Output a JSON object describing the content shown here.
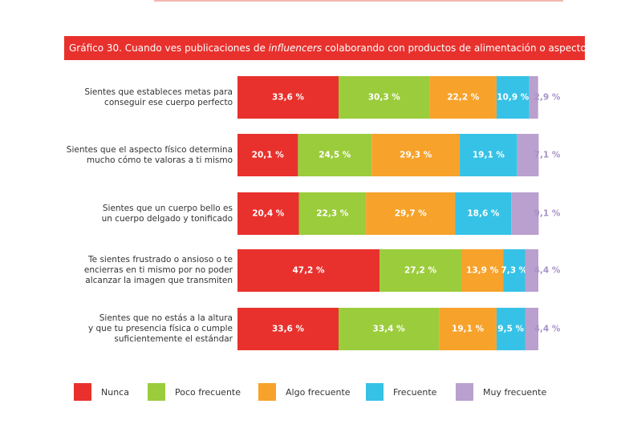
{
  "title": {
    "prefix": "Gráfico 30. Cuando ves publicaciones de ",
    "italic": "influencers",
    "suffix": " colaborando con productos de alimentación o aspecto físico"
  },
  "colors": {
    "title_bg": "#e8312d",
    "nunca": "#e8312d",
    "poco": "#9bcc3c",
    "algo": "#f7a22b",
    "frecuente": "#36c2e6",
    "muy": "#b9a0cf",
    "outside_label": "#a793c6"
  },
  "chart_data": {
    "type": "bar",
    "orientation": "horizontal",
    "stacked": true,
    "categories": [
      [
        "Sientes que estableces metas para",
        "conseguir ese cuerpo perfecto"
      ],
      [
        "Sientes que el aspecto físico determina",
        "mucho cómo te valoras a ti mismo"
      ],
      [
        "Sientes que un cuerpo bello es",
        "un cuerpo delgado y tonificado"
      ],
      [
        "Te sientes frustrado o ansioso o te",
        "encierras en ti mismo por no poder",
        "alcanzar la imagen que transmiten"
      ],
      [
        "Sientes que no estás a la altura",
        "y que tu presencia física o cumple",
        "suficientemente el estándar"
      ]
    ],
    "series": [
      {
        "name": "Nunca",
        "values": [
          33.6,
          20.1,
          20.4,
          47.2,
          33.6
        ],
        "labels": [
          "33,6 %",
          "20,1 %",
          "20,4 %",
          "47,2 %",
          "33,6 %"
        ]
      },
      {
        "name": "Poco frecuente",
        "values": [
          30.3,
          24.5,
          22.3,
          27.2,
          33.4
        ],
        "labels": [
          "30,3 %",
          "24,5 %",
          "22,3 %",
          "27,2 %",
          "33,4 %"
        ]
      },
      {
        "name": "Algo frecuente",
        "values": [
          22.2,
          29.3,
          29.7,
          13.9,
          19.1
        ],
        "labels": [
          "22,2 %",
          "29,3 %",
          "29,7 %",
          "13,9 %",
          "19,1 %"
        ]
      },
      {
        "name": "Frecuente",
        "values": [
          10.9,
          19.1,
          18.6,
          7.3,
          9.5
        ],
        "labels": [
          "10,9 %",
          "19,1 %",
          "18,6 %",
          "7,3 %",
          "9,5 %"
        ]
      },
      {
        "name": "Muy frecuente",
        "values": [
          2.9,
          7.1,
          9.1,
          4.4,
          4.4
        ],
        "labels": [
          "2,9 %",
          "7,1 %",
          "9,1 %",
          "4,4 %",
          "4,4 %"
        ]
      }
    ],
    "xlim": [
      0,
      100
    ],
    "legend_position": "bottom",
    "grid": false
  }
}
